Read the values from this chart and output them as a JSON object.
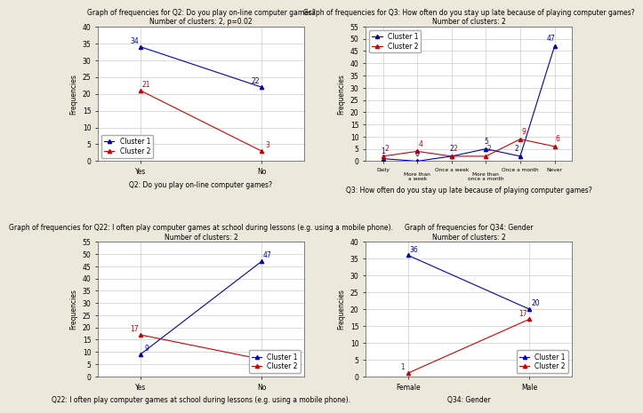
{
  "chart1": {
    "title": "Graph of frequencies for Q2: Do you play on-line computer games?",
    "subtitle": "Number of clusters: 2, p=0.02",
    "xlabel": "Q2: Do you play on-line computer games?",
    "ylabel": "Frequencies",
    "categories": [
      "Yes",
      "No"
    ],
    "cluster1": [
      34,
      22
    ],
    "cluster2": [
      21,
      3
    ],
    "ylim": [
      0,
      40
    ],
    "yticks": [
      0,
      5,
      10,
      15,
      20,
      25,
      30,
      35,
      40
    ]
  },
  "chart2": {
    "title": "Graph of frequencies for Q3: How often do you stay up late because of playing computer games?",
    "subtitle": "Number of clusters: 2",
    "xlabel": "Q3: How often do you stay up late because of playing computer games?",
    "ylabel": "Frequencies",
    "categories": [
      "Daily",
      "More than a week",
      "Once a week",
      "More than once a month",
      "Once a month",
      "Never"
    ],
    "xtick_top": [
      "Daily",
      "Once a week",
      "Once a month",
      "Never"
    ],
    "xtick_bottom": [
      "More than a week",
      "More than once a month"
    ],
    "cluster1": [
      1,
      0,
      2,
      5,
      2,
      47
    ],
    "cluster2": [
      2,
      4,
      2,
      2,
      9,
      6
    ],
    "ylim": [
      0,
      55
    ],
    "yticks": [
      0,
      5,
      10,
      15,
      20,
      25,
      30,
      35,
      40,
      45,
      50,
      55
    ]
  },
  "chart3": {
    "title": "Graph of frequencies for Q22: I often play computer games at school during lessons (e.g. using a mobile phone).",
    "subtitle": "Number of clusters: 2",
    "xlabel": "Q22: I often play computer games at school during lessons (e.g. using a mobile phone).",
    "ylabel": "Frequencies",
    "categories": [
      "Yes",
      "No"
    ],
    "cluster1": [
      9,
      47
    ],
    "cluster2": [
      17,
      7
    ],
    "ylim": [
      0,
      55
    ],
    "yticks": [
      0,
      5,
      10,
      15,
      20,
      25,
      30,
      35,
      40,
      45,
      50,
      55
    ]
  },
  "chart4": {
    "title": "Graph of frequencies for Q34: Gender",
    "subtitle": "Number of clusters: 2",
    "xlabel": "Q34: Gender",
    "ylabel": "Frequencies",
    "categories": [
      "Female",
      "Male"
    ],
    "cluster1": [
      36,
      20
    ],
    "cluster2": [
      1,
      17
    ],
    "ylim": [
      0,
      40
    ],
    "yticks": [
      0,
      5,
      10,
      15,
      20,
      25,
      30,
      35,
      40
    ]
  },
  "color_cluster1": "#0000bb",
  "color_cluster2": "#cc0000",
  "fig_bg_color": "#ede8dc",
  "plot_bg_color": "#ffffff",
  "grid_color": "#cccccc",
  "title_fontsize": 5.5,
  "subtitle_fontsize": 5.5,
  "xlabel_fontsize": 5.5,
  "ylabel_fontsize": 5.5,
  "tick_fontsize": 5.5,
  "label_fontsize": 5.5,
  "legend_fontsize": 5.5
}
